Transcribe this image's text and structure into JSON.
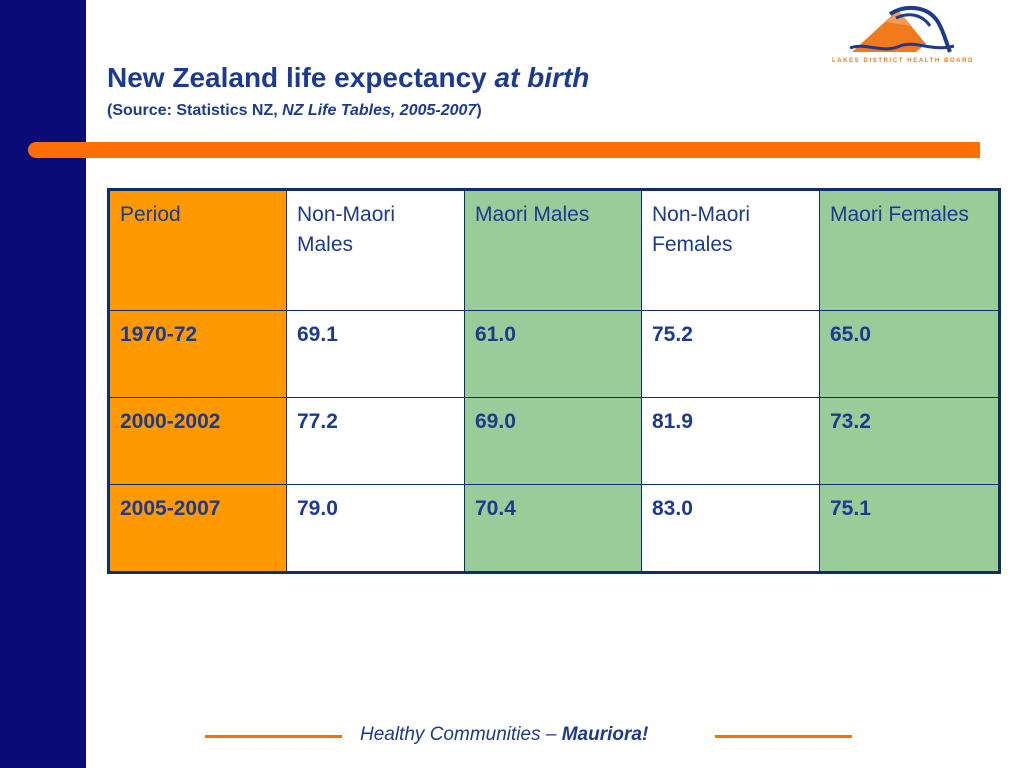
{
  "brand": {
    "logo_text": "LAKES DISTRICT HEALTH BOARD",
    "colors": {
      "navy": "#0b0b77",
      "orange": "#ff6d05",
      "title_blue": "#1c3a8f",
      "period_col": "#ff9900",
      "maori_col": "#99cc99"
    }
  },
  "header": {
    "title_main": "New Zealand life expectancy ",
    "title_emph": "at birth",
    "subtitle_open": "(Source: Statistics NZ, ",
    "subtitle_emph": "NZ Life Tables, 2005-2007",
    "subtitle_close": ")"
  },
  "table": {
    "headers": [
      "Period",
      "Non-Maori Males",
      "Maori Males",
      "Non-Maori Females",
      "Maori Females"
    ],
    "rows": [
      {
        "period": "1970-72",
        "values": [
          "69.1",
          "61.0",
          "75.2",
          "65.0"
        ]
      },
      {
        "period": "2000-2002",
        "values": [
          "77.2",
          "69.0",
          "81.9",
          "73.2"
        ]
      },
      {
        "period": "2005-2007",
        "values": [
          "79.0",
          "70.4",
          "83.0",
          "75.1"
        ]
      }
    ]
  },
  "footer": {
    "text": "Healthy Communities – ",
    "emph": "Mauriora!"
  }
}
